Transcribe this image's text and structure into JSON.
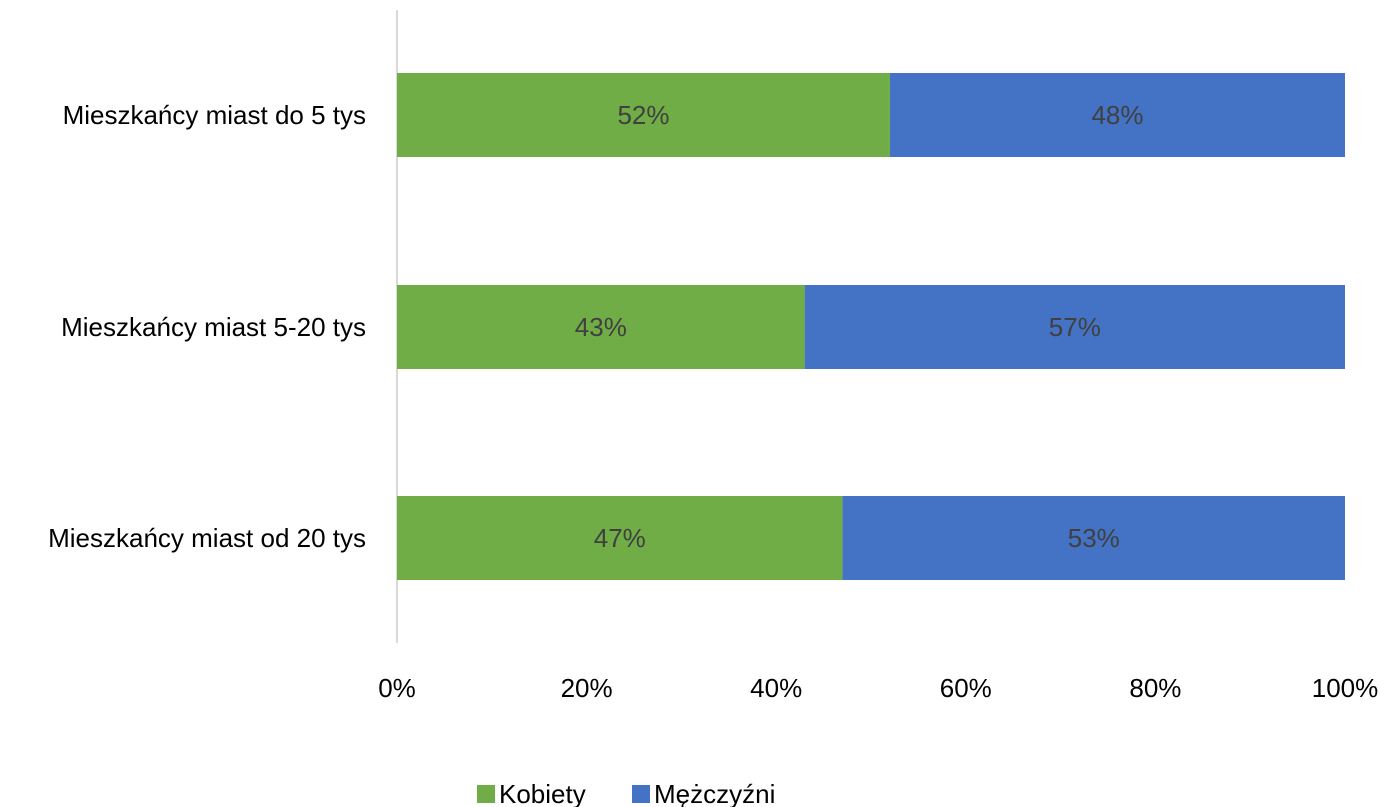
{
  "chart_data": {
    "type": "bar",
    "orientation": "horizontal",
    "stacked": "100%",
    "categories": [
      "Mieszkańcy miast do 5 tys",
      "Mieszkańcy miast 5-20 tys",
      "Mieszkańcy miast od 20 tys"
    ],
    "series": [
      {
        "name": "Kobiety",
        "color": "#70AD47",
        "values": [
          52,
          43,
          47
        ],
        "labels": [
          "52%",
          "43%",
          "47%"
        ]
      },
      {
        "name": "Mężczyźni",
        "color": "#4472C4",
        "values": [
          48,
          57,
          53
        ],
        "labels": [
          "48%",
          "57%",
          "53%"
        ]
      }
    ],
    "xlim": [
      0,
      100
    ],
    "x_ticks": [
      "0%",
      "20%",
      "40%",
      "60%",
      "80%",
      "100%"
    ],
    "grid": false,
    "legend_position": "bottom"
  }
}
